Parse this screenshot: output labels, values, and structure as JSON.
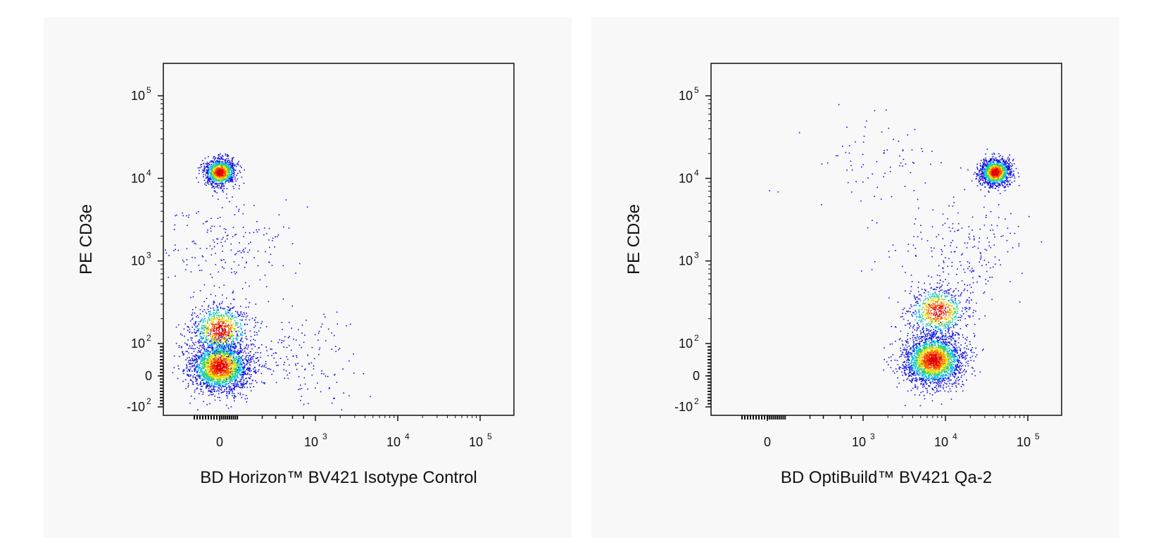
{
  "chart_data": [
    {
      "type": "scatter",
      "subtype": "flow-cytometry-density-dot-plot",
      "xlabel": "BD Horizon™ BV421 Isotype Control",
      "ylabel": "PE CD3e",
      "x_scale": "biexponential",
      "y_scale": "biexponential",
      "x_ticks": [
        {
          "value": 0,
          "base": "0",
          "exp": ""
        },
        {
          "value": 1000,
          "base": "10",
          "exp": "3"
        },
        {
          "value": 10000,
          "base": "10",
          "exp": "4"
        },
        {
          "value": 100000,
          "base": "10",
          "exp": "5"
        }
      ],
      "y_ticks": [
        {
          "value": 100000,
          "base": "10",
          "exp": "5"
        },
        {
          "value": 10000,
          "base": "10",
          "exp": "4"
        },
        {
          "value": 1000,
          "base": "10",
          "exp": "3"
        },
        {
          "value": 100,
          "base": "10",
          "exp": "2"
        },
        {
          "value": 0,
          "base": "0",
          "exp": ""
        },
        {
          "value": -100,
          "base": "-10",
          "exp": "2"
        }
      ],
      "populations": [
        {
          "x_center": 0,
          "y_center": 12000,
          "spread": "tight",
          "count": 1100
        },
        {
          "x_center": 0,
          "y_center": 30,
          "spread": "broad",
          "count": 2300
        },
        {
          "x_center": 0,
          "y_center": 150,
          "spread": "broad",
          "count": 800
        },
        {
          "x_center": 0,
          "y_center": 1500,
          "spread": "sparse",
          "count": 200
        },
        {
          "x_center": 400,
          "y_center": 60,
          "spread": "sparse",
          "count": 200
        }
      ],
      "colormap": [
        "#1010e0",
        "#00c0ff",
        "#30d060",
        "#f0e000",
        "#ff6000",
        "#e00000"
      ]
    },
    {
      "type": "scatter",
      "subtype": "flow-cytometry-density-dot-plot",
      "xlabel": "BD OptiBuild™ BV421 Qa-2",
      "ylabel": "PE CD3e",
      "x_scale": "biexponential",
      "y_scale": "biexponential",
      "x_ticks": [
        {
          "value": 0,
          "base": "0",
          "exp": ""
        },
        {
          "value": 1000,
          "base": "10",
          "exp": "3"
        },
        {
          "value": 10000,
          "base": "10",
          "exp": "4"
        },
        {
          "value": 100000,
          "base": "10",
          "exp": "5"
        }
      ],
      "y_ticks": [
        {
          "value": 100000,
          "base": "10",
          "exp": "5"
        },
        {
          "value": 10000,
          "base": "10",
          "exp": "4"
        },
        {
          "value": 1000,
          "base": "10",
          "exp": "3"
        },
        {
          "value": 100,
          "base": "10",
          "exp": "2"
        },
        {
          "value": 0,
          "base": "0",
          "exp": ""
        },
        {
          "value": -100,
          "base": "-10",
          "exp": "2"
        }
      ],
      "populations": [
        {
          "x_center": 40000,
          "y_center": 12000,
          "spread": "tight",
          "count": 1300
        },
        {
          "x_center": 7000,
          "y_center": 50,
          "spread": "broad",
          "count": 2400
        },
        {
          "x_center": 8000,
          "y_center": 250,
          "spread": "broad",
          "count": 700
        },
        {
          "x_center": 15000,
          "y_center": 1500,
          "spread": "sparse",
          "count": 200
        },
        {
          "x_center": 1500,
          "y_center": 15000,
          "spread": "sparse",
          "count": 80
        }
      ],
      "colormap": [
        "#1010e0",
        "#00c0ff",
        "#30d060",
        "#f0e000",
        "#ff6000",
        "#e00000"
      ]
    }
  ]
}
